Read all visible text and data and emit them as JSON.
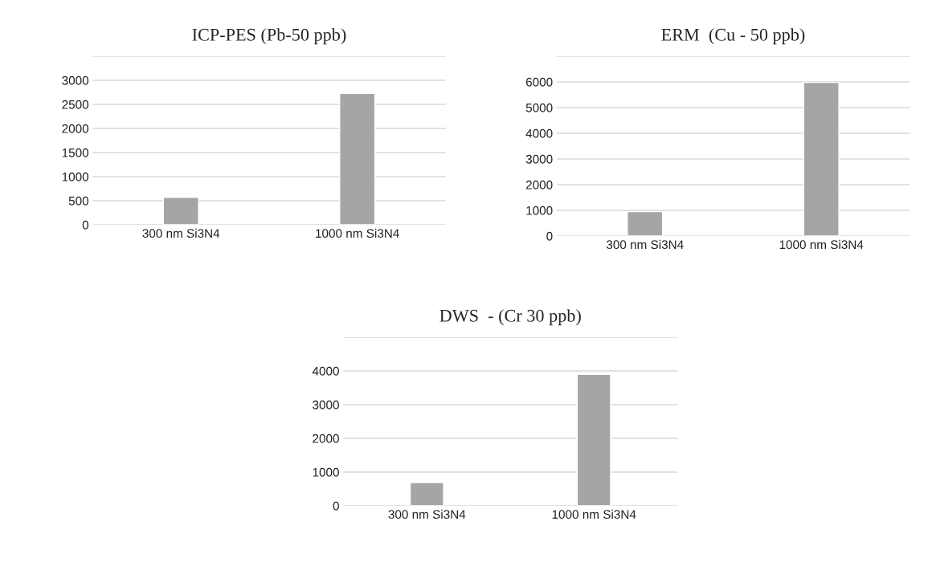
{
  "chart_data": [
    {
      "type": "bar",
      "title": "ICP-PES (Pb-50 ppb)",
      "categories": [
        "300 nm Si3N4",
        "1000 nm Si3N4"
      ],
      "values": [
        570,
        2730
      ],
      "color": "#a5a5a5",
      "ylim": [
        0,
        3500
      ],
      "yticks": [
        0,
        500,
        1000,
        1500,
        2000,
        2500,
        3000,
        {
          "value": 3500,
          "label": null
        }
      ],
      "grid": "y"
    },
    {
      "type": "bar",
      "title": "ERM  (Cu - 50 ppb)",
      "categories": [
        "300 nm Si3N4",
        "1000 nm Si3N4"
      ],
      "values": [
        950,
        5980
      ],
      "color": "#a5a5a5",
      "ylim": [
        0,
        7000
      ],
      "yticks": [
        0,
        1000,
        2000,
        3000,
        4000,
        5000,
        6000,
        {
          "value": 7000,
          "label": null
        }
      ],
      "grid": "y"
    },
    {
      "type": "bar",
      "title": "DWS  - (Cr 30 ppb)",
      "categories": [
        "300 nm Si3N4",
        "1000 nm Si3N4"
      ],
      "values": [
        690,
        3900
      ],
      "color": "#a5a5a5",
      "ylim": [
        0,
        5000
      ],
      "yticks": [
        0,
        1000,
        2000,
        3000,
        4000,
        {
          "value": 5000,
          "label": null
        }
      ],
      "grid": "y"
    }
  ]
}
